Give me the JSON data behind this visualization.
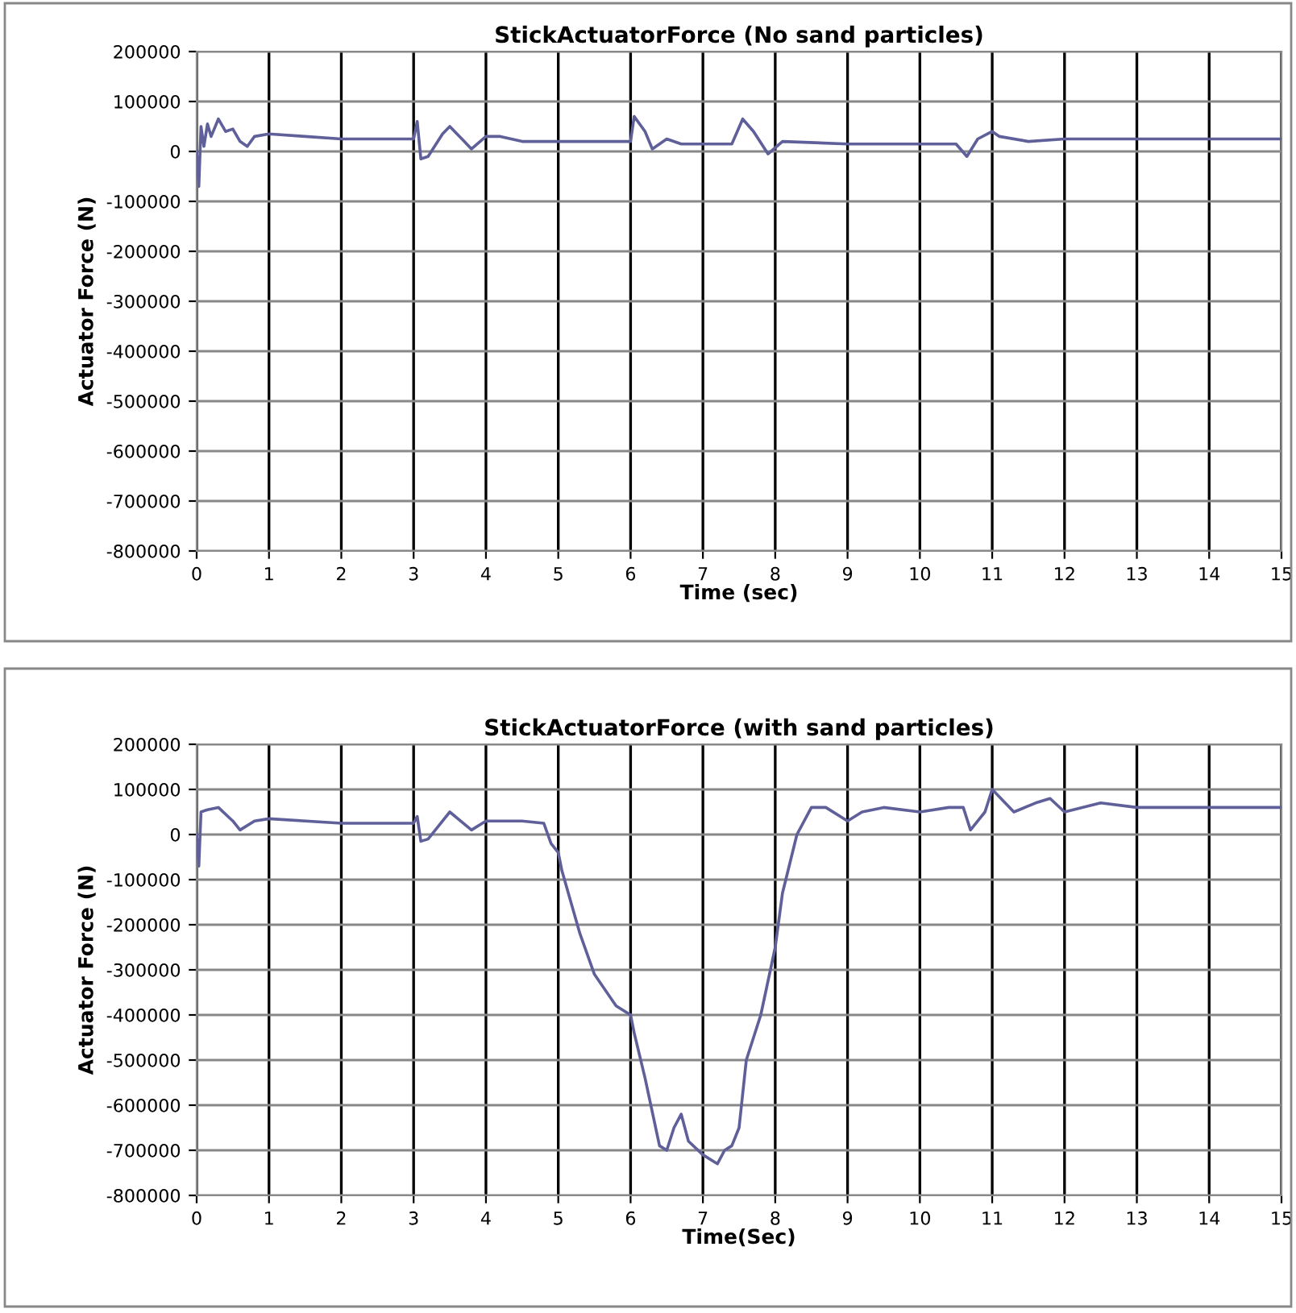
{
  "chart_data": [
    {
      "type": "line",
      "title": "StickActuatorForce (No sand particles)",
      "xlabel": "Time (sec)",
      "ylabel": "Actuator Force (N)",
      "xlim": [
        0,
        15
      ],
      "xticks": [
        0,
        1,
        2,
        3,
        4,
        5,
        6,
        7,
        8,
        9,
        10,
        11,
        12,
        13,
        14,
        15
      ],
      "ylim": [
        -800000,
        200000
      ],
      "yticks": [
        -800000,
        -700000,
        -600000,
        -500000,
        -400000,
        -300000,
        -200000,
        -100000,
        0,
        100000,
        200000
      ],
      "grid": true,
      "legend": false,
      "marker": "none",
      "line_style": "solid",
      "series": [
        {
          "color": "#5f5f9a",
          "x": [
            0,
            0.03,
            0.06,
            0.1,
            0.15,
            0.2,
            0.3,
            0.4,
            0.5,
            0.6,
            0.7,
            0.8,
            1.0,
            1.5,
            2,
            3.0,
            3.05,
            3.1,
            3.2,
            3.4,
            3.5,
            3.7,
            3.8,
            4.0,
            4.2,
            4.5,
            5,
            6.0,
            6.05,
            6.2,
            6.3,
            6.5,
            6.7,
            7,
            7.4,
            7.55,
            7.7,
            7.9,
            8.1,
            9,
            10,
            10.5,
            10.65,
            10.8,
            11,
            11.1,
            11.5,
            12,
            13,
            15
          ],
          "values": [
            0,
            -70000,
            50000,
            10000,
            55000,
            30000,
            65000,
            40000,
            45000,
            20000,
            10000,
            30000,
            35000,
            30000,
            25000,
            25000,
            60000,
            -15000,
            -10000,
            35000,
            50000,
            20000,
            5000,
            30000,
            30000,
            20000,
            20000,
            20000,
            70000,
            40000,
            5000,
            25000,
            15000,
            15000,
            15000,
            65000,
            40000,
            -5000,
            20000,
            15000,
            15000,
            15000,
            -10000,
            25000,
            40000,
            30000,
            20000,
            25000,
            25000,
            25000
          ]
        }
      ]
    },
    {
      "type": "line",
      "title": "StickActuatorForce (with sand particles)",
      "xlabel": "Time(Sec)",
      "ylabel": "Actuator Force (N)",
      "xlim": [
        0,
        15
      ],
      "xticks": [
        0,
        1,
        2,
        3,
        4,
        5,
        6,
        7,
        8,
        9,
        10,
        11,
        12,
        13,
        14,
        15
      ],
      "ylim": [
        -800000,
        200000
      ],
      "yticks": [
        -800000,
        -700000,
        -600000,
        -500000,
        -400000,
        -300000,
        -200000,
        -100000,
        0,
        100000,
        200000
      ],
      "grid": true,
      "legend": false,
      "marker": "none",
      "line_style": "solid",
      "series": [
        {
          "color": "#5f5f9a",
          "x": [
            0,
            0.03,
            0.06,
            0.15,
            0.3,
            0.5,
            0.6,
            0.8,
            1,
            2,
            3,
            3.05,
            3.1,
            3.2,
            3.5,
            3.8,
            4,
            4.5,
            4.8,
            4.9,
            5.0,
            5.05,
            5.3,
            5.5,
            5.8,
            6.0,
            6.05,
            6.2,
            6.4,
            6.5,
            6.6,
            6.7,
            6.8,
            7.0,
            7.2,
            7.3,
            7.4,
            7.5,
            7.6,
            7.8,
            8.0,
            8.1,
            8.3,
            8.5,
            8.7,
            9.0,
            9.2,
            9.5,
            10,
            10.4,
            10.6,
            10.7,
            10.9,
            11,
            11.3,
            11.6,
            11.8,
            12,
            12.5,
            13,
            14,
            15
          ],
          "values": [
            0,
            -70000,
            50000,
            55000,
            60000,
            30000,
            10000,
            30000,
            35000,
            25000,
            25000,
            40000,
            -15000,
            -10000,
            50000,
            10000,
            30000,
            30000,
            25000,
            -20000,
            -40000,
            -80000,
            -220000,
            -310000,
            -380000,
            -400000,
            -440000,
            -540000,
            -690000,
            -700000,
            -650000,
            -620000,
            -680000,
            -710000,
            -730000,
            -700000,
            -690000,
            -650000,
            -500000,
            -400000,
            -250000,
            -130000,
            0,
            60000,
            60000,
            30000,
            50000,
            60000,
            50000,
            60000,
            60000,
            10000,
            50000,
            100000,
            50000,
            70000,
            80000,
            50000,
            70000,
            60000,
            60000,
            60000
          ]
        }
      ]
    }
  ]
}
